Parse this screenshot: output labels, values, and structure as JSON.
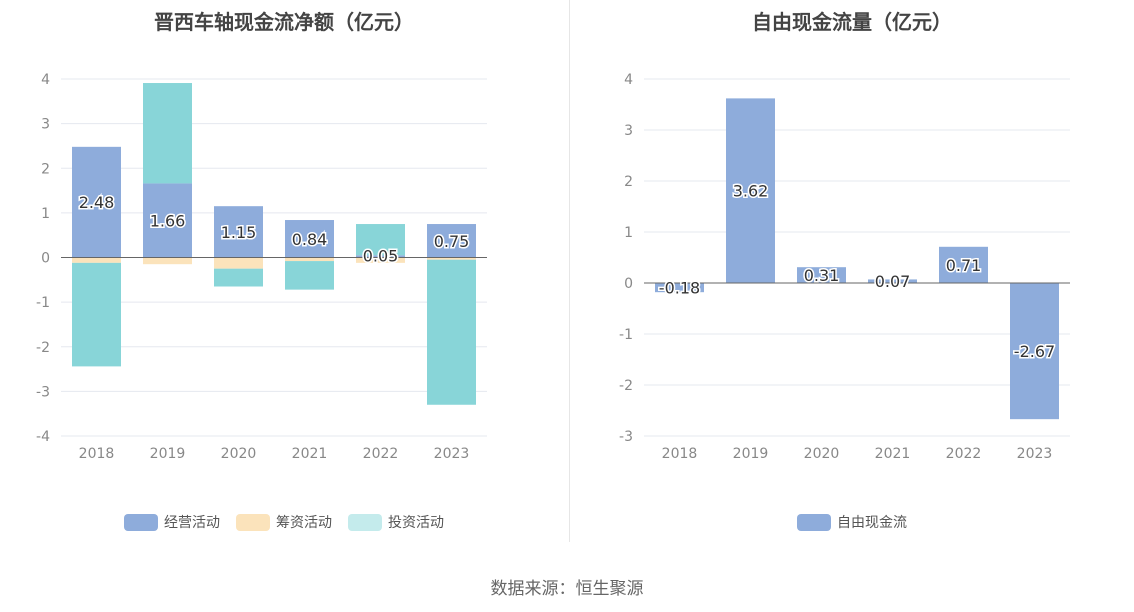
{
  "source": "数据来源：恒生聚源",
  "colors": {
    "operating": "#8eacdb",
    "financing": "#fbe3bb",
    "investing": "#88d5d8",
    "fcf": "#8eacdb",
    "grid": "#e5e8ef",
    "axis": "#666666",
    "tick_text": "#888888"
  },
  "chart_data": [
    {
      "type": "bar",
      "stacked": true,
      "title": "晋西车轴现金流净额（亿元）",
      "categories": [
        "2018",
        "2019",
        "2020",
        "2021",
        "2022",
        "2023"
      ],
      "ylim": [
        -4,
        4
      ],
      "yticks": [
        "4",
        "3",
        "2",
        "1",
        "0",
        "-1",
        "-2",
        "-3",
        "-4"
      ],
      "grid": true,
      "legend_position": "bottom-center",
      "series": [
        {
          "name": "经营活动",
          "values": [
            2.48,
            1.66,
            1.15,
            0.84,
            0.05,
            0.75
          ],
          "labels": [
            "2.48",
            "1.66",
            "1.15",
            "0.84",
            "0.05",
            "0.75"
          ]
        },
        {
          "name": "筹资活动",
          "values": [
            -0.12,
            -0.15,
            -0.25,
            -0.08,
            -0.12,
            -0.05
          ]
        },
        {
          "name": "投资活动",
          "values": [
            -2.32,
            2.25,
            -0.4,
            -0.64,
            0.7,
            -3.25
          ]
        }
      ]
    },
    {
      "type": "bar",
      "title": "自由现金流量（亿元）",
      "categories": [
        "2018",
        "2019",
        "2020",
        "2021",
        "2022",
        "2023"
      ],
      "ylim": [
        -3,
        4
      ],
      "yticks": [
        "4",
        "3",
        "2",
        "1",
        "0",
        "-1",
        "-2",
        "-3"
      ],
      "grid": true,
      "legend_position": "bottom-center",
      "series": [
        {
          "name": "自由现金流",
          "values": [
            -0.18,
            3.62,
            0.31,
            0.07,
            0.71,
            -2.67
          ],
          "labels": [
            "-0.18",
            "3.62",
            "0.31",
            "0.07",
            "0.71",
            "-2.67"
          ]
        }
      ]
    }
  ]
}
